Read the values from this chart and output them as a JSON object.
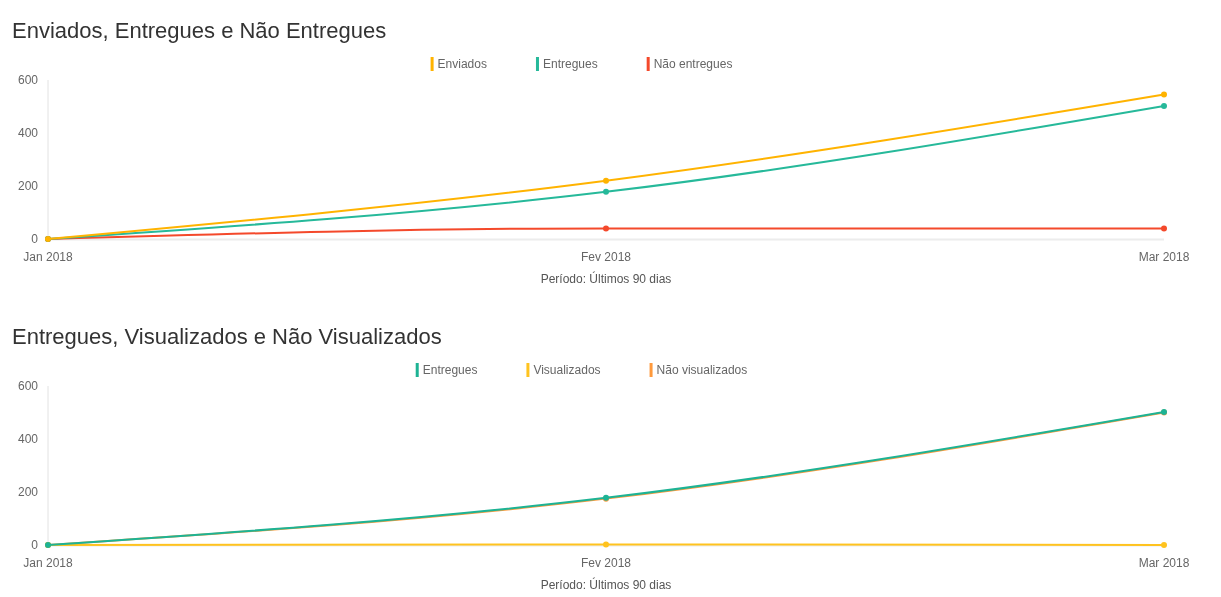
{
  "chart_data": [
    {
      "type": "line",
      "title": "Enviados, Entregues e Não Entregues",
      "xlabel": "Período: Últimos 90 dias",
      "categories": [
        "Jan 2018",
        "Fev 2018",
        "Mar 2018"
      ],
      "series": [
        {
          "name": "Enviados",
          "color": "#ffb300",
          "values": [
            0,
            220,
            545
          ]
        },
        {
          "name": "Entregues",
          "color": "#26b99a",
          "values": [
            0,
            178,
            502
          ]
        },
        {
          "name": "Não entregues",
          "color": "#f4492b",
          "values": [
            0,
            40,
            40
          ]
        }
      ],
      "ylim": [
        0,
        600
      ],
      "yticks": [
        0,
        200,
        400,
        600
      ],
      "legend": "top",
      "marker": "circle"
    },
    {
      "type": "line",
      "title": "Entregues, Visualizados e Não Visualizados",
      "xlabel": "Período: Últimos 90 dias",
      "categories": [
        "Jan 2018",
        "Fev 2018",
        "Mar 2018"
      ],
      "series": [
        {
          "name": "Entregues",
          "color": "#1db394",
          "values": [
            0,
            178,
            502
          ]
        },
        {
          "name": "Visualizados",
          "color": "#ffc31f",
          "values": [
            0,
            2,
            0
          ]
        },
        {
          "name": "Não visualizados",
          "color": "#ff9a3c",
          "values": [
            0,
            175,
            500
          ]
        }
      ],
      "ylim": [
        0,
        600
      ],
      "yticks": [
        0,
        200,
        400,
        600
      ],
      "legend": "top",
      "marker": "circle"
    }
  ]
}
